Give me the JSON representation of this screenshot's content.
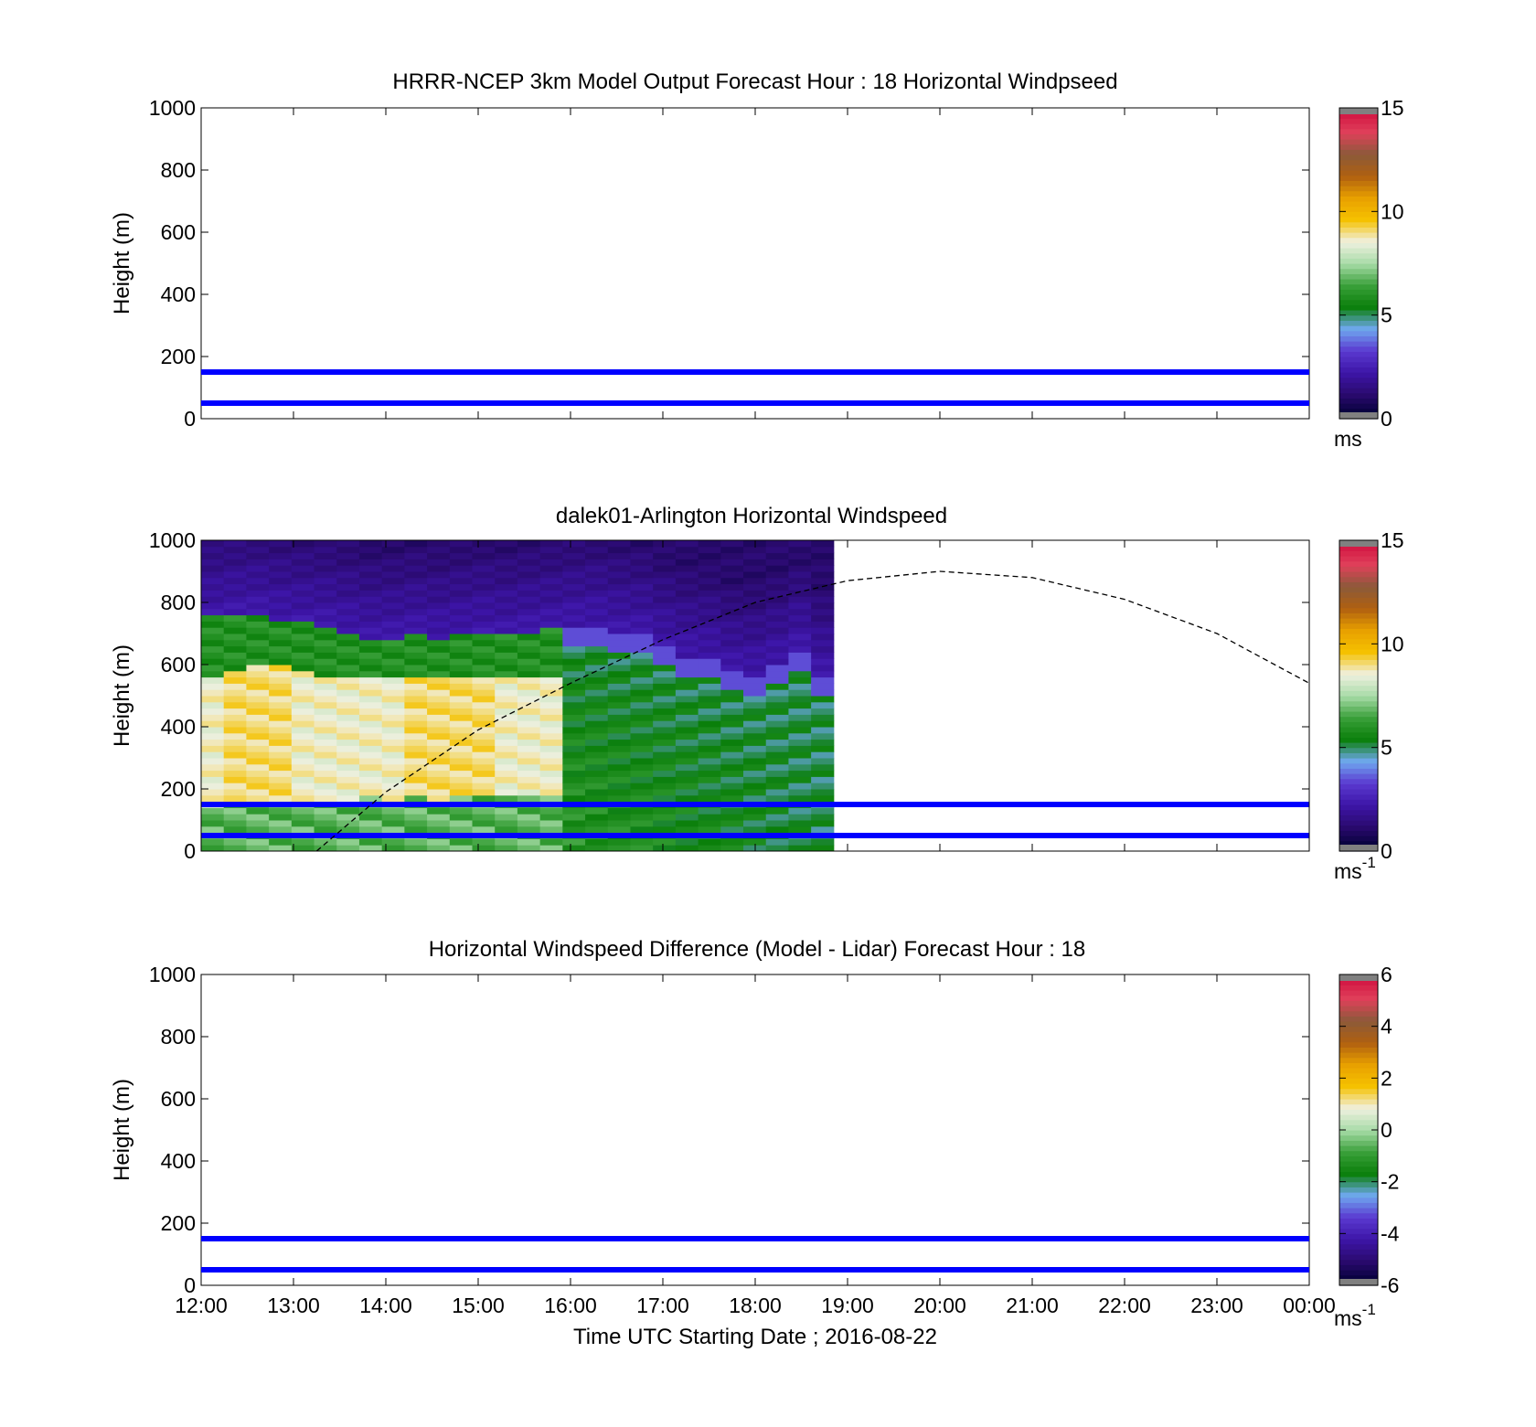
{
  "time_labels": [
    "12:00",
    "13:00",
    "14:00",
    "15:00",
    "16:00",
    "17:00",
    "18:00",
    "19:00",
    "20:00",
    "21:00",
    "22:00",
    "23:00",
    "00:00"
  ],
  "xlabel": "Time UTC  Starting Date ; 2016-08-22",
  "colors": {
    "marker_lines": "#0000ff",
    "colormap": [
      "#808080",
      "#000033",
      "#2a0a6e",
      "#3d15a8",
      "#5a3ad0",
      "#6fa8f0",
      "#0a7f0a",
      "#3aa03a",
      "#a8dca8",
      "#f0f0e0",
      "#f5c200",
      "#e8a000",
      "#b06010",
      "#8b5a3a",
      "#e0405a",
      "#d01040",
      "#808080"
    ]
  },
  "charts": [
    {
      "type": "heatmap",
      "title": "HRRR-NCEP 3km Model Output   Forecast Hour : 18 Horizontal Windpseed",
      "ylabel": "Height (m)",
      "ylim": [
        0,
        1000
      ],
      "yticks": [
        "0",
        "200",
        "400",
        "600",
        "800",
        "1000"
      ],
      "xlim_hours": [
        12,
        24
      ],
      "colorbar": {
        "ticks": [
          "0",
          "5",
          "10",
          "15"
        ],
        "unit": "ms",
        "unit_sup": "",
        "range": [
          0,
          15
        ]
      },
      "reference_heights": [
        50,
        150
      ],
      "data": "none"
    },
    {
      "type": "heatmap",
      "title": "dalek01-Arlington  Horizontal Windspeed",
      "ylabel": "Height (m)",
      "ylim": [
        0,
        1000
      ],
      "yticks": [
        "0",
        "200",
        "400",
        "600",
        "800",
        "1000"
      ],
      "xlim_hours": [
        12,
        24
      ],
      "colorbar": {
        "ticks": [
          "0",
          "5",
          "10",
          "15"
        ],
        "unit": "ms",
        "unit_sup": "-1",
        "range": [
          0,
          15
        ]
      },
      "reference_heights": [
        50,
        150
      ],
      "data_time_range_hours": [
        12,
        18.85
      ],
      "profile_columns": [
        {
          "top_m": 750,
          "jet_m": [
            150,
            560
          ],
          "jet_speed": 9
        },
        {
          "top_m": 760,
          "jet_m": [
            160,
            580
          ],
          "jet_speed": 9.5
        },
        {
          "top_m": 760,
          "jet_m": [
            170,
            600
          ],
          "jet_speed": 9.5
        },
        {
          "top_m": 740,
          "jet_m": [
            170,
            590
          ],
          "jet_speed": 9.5
        },
        {
          "top_m": 730,
          "jet_m": [
            170,
            570
          ],
          "jet_speed": 9
        },
        {
          "top_m": 720,
          "jet_m": [
            170,
            560
          ],
          "jet_speed": 9
        },
        {
          "top_m": 700,
          "jet_m": [
            170,
            560
          ],
          "jet_speed": 9
        },
        {
          "top_m": 680,
          "jet_m": [
            180,
            560
          ],
          "jet_speed": 9
        },
        {
          "top_m": 680,
          "jet_m": [
            170,
            560
          ],
          "jet_speed": 9
        },
        {
          "top_m": 690,
          "jet_m": [
            180,
            550
          ],
          "jet_speed": 9.5
        },
        {
          "top_m": 680,
          "jet_m": [
            170,
            560
          ],
          "jet_speed": 9.5
        },
        {
          "top_m": 690,
          "jet_m": [
            180,
            560
          ],
          "jet_speed": 9.5
        },
        {
          "top_m": 700,
          "jet_m": [
            180,
            560
          ],
          "jet_speed": 9.5
        },
        {
          "top_m": 690,
          "jet_m": [
            180,
            550
          ],
          "jet_speed": 9
        },
        {
          "top_m": 700,
          "jet_m": [
            180,
            550
          ],
          "jet_speed": 9
        },
        {
          "top_m": 710,
          "jet_m": [
            190,
            560
          ],
          "jet_speed": 9
        },
        {
          "top_m": 720,
          "jet_m": [
            0,
            0
          ],
          "jet_speed": 0
        },
        {
          "top_m": 720,
          "jet_m": [
            0,
            0
          ],
          "jet_speed": 0
        },
        {
          "top_m": 700,
          "jet_m": [
            0,
            0
          ],
          "jet_speed": 0
        },
        {
          "top_m": 690,
          "jet_m": [
            0,
            0
          ],
          "jet_speed": 0
        },
        {
          "top_m": 650,
          "jet_m": [
            0,
            0
          ],
          "jet_speed": 0
        },
        {
          "top_m": 620,
          "jet_m": [
            0,
            0
          ],
          "jet_speed": 0
        },
        {
          "top_m": 610,
          "jet_m": [
            0,
            0
          ],
          "jet_speed": 0
        },
        {
          "top_m": 570,
          "jet_m": [
            0,
            0
          ],
          "jet_speed": 0
        },
        {
          "top_m": 560,
          "jet_m": [
            0,
            0
          ],
          "jet_speed": 0
        },
        {
          "top_m": 590,
          "jet_m": [
            0,
            0
          ],
          "jet_speed": 0
        },
        {
          "top_m": 640,
          "jet_m": [
            0,
            0
          ],
          "jet_speed": 0
        },
        {
          "top_m": 560,
          "jet_m": [
            0,
            0
          ],
          "jet_speed": 0
        }
      ],
      "boundary_layer_curve": {
        "style": "dashed",
        "points_hour_m": [
          [
            13.25,
            0
          ],
          [
            14,
            190
          ],
          [
            15,
            390
          ],
          [
            16,
            540
          ],
          [
            17,
            680
          ],
          [
            18,
            800
          ],
          [
            19,
            870
          ],
          [
            20,
            900
          ],
          [
            21,
            880
          ],
          [
            22,
            810
          ],
          [
            23,
            700
          ],
          [
            24,
            540
          ]
        ]
      }
    },
    {
      "type": "heatmap",
      "title": "Horizontal Windspeed Difference (Model - Lidar) Forecast Hour : 18",
      "ylabel": "Height (m)",
      "ylim": [
        0,
        1000
      ],
      "yticks": [
        "0",
        "200",
        "400",
        "600",
        "800",
        "1000"
      ],
      "xlim_hours": [
        12,
        24
      ],
      "colorbar": {
        "ticks": [
          "-6",
          "-4",
          "-2",
          "0",
          "2",
          "4",
          "6"
        ],
        "unit": "ms",
        "unit_sup": "-1",
        "range": [
          -6,
          6
        ]
      },
      "reference_heights": [
        50,
        150
      ],
      "data": "none"
    }
  ]
}
